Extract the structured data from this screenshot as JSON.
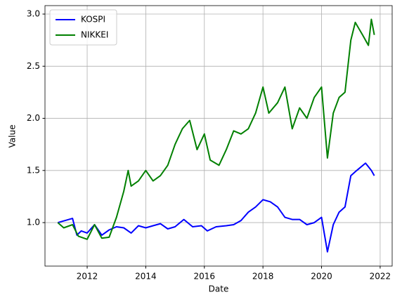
{
  "chart_data": {
    "type": "line",
    "xlabel": "Date",
    "ylabel": "Value",
    "xlim": [
      2010.56,
      2022.41
    ],
    "ylim": [
      0.583,
      3.081
    ],
    "xticks": [
      2012,
      2014,
      2016,
      2018,
      2020,
      2022
    ],
    "yticks": [
      {
        "value": 1.0,
        "label": "1.0"
      },
      {
        "value": 1.5,
        "label": "1.5"
      },
      {
        "value": 2.0,
        "label": "2.0"
      },
      {
        "value": 2.5,
        "label": "2.5"
      },
      {
        "value": 3.0,
        "label": "3.0"
      }
    ],
    "grid": true,
    "legend": "upper-left",
    "series": [
      {
        "name": "KOSPI",
        "color": "#0000ff",
        "x": [
          2011.0,
          2011.25,
          2011.5,
          2011.65,
          2011.8,
          2012.0,
          2012.25,
          2012.5,
          2012.75,
          2013.0,
          2013.25,
          2013.5,
          2013.75,
          2014.0,
          2014.25,
          2014.5,
          2014.75,
          2015.0,
          2015.3,
          2015.6,
          2015.9,
          2016.1,
          2016.4,
          2016.75,
          2017.0,
          2017.25,
          2017.5,
          2017.75,
          2018.0,
          2018.25,
          2018.5,
          2018.75,
          2019.0,
          2019.25,
          2019.5,
          2019.75,
          2020.0,
          2020.2,
          2020.4,
          2020.6,
          2020.8,
          2021.0,
          2021.2,
          2021.5,
          2021.7,
          2021.8
        ],
        "values": [
          1.0,
          1.02,
          1.04,
          0.88,
          0.92,
          0.9,
          0.98,
          0.88,
          0.93,
          0.96,
          0.95,
          0.9,
          0.97,
          0.95,
          0.97,
          0.99,
          0.94,
          0.96,
          1.03,
          0.96,
          0.97,
          0.92,
          0.96,
          0.97,
          0.98,
          1.02,
          1.1,
          1.15,
          1.22,
          1.2,
          1.15,
          1.05,
          1.03,
          1.03,
          0.98,
          1.0,
          1.05,
          0.72,
          0.98,
          1.1,
          1.15,
          1.45,
          1.5,
          1.57,
          1.5,
          1.45
        ]
      },
      {
        "name": "NIKKEI",
        "color": "#008000",
        "x": [
          2011.0,
          2011.2,
          2011.5,
          2011.7,
          2012.0,
          2012.25,
          2012.5,
          2012.75,
          2013.0,
          2013.25,
          2013.4,
          2013.5,
          2013.75,
          2014.0,
          2014.25,
          2014.5,
          2014.75,
          2015.0,
          2015.25,
          2015.5,
          2015.75,
          2016.0,
          2016.2,
          2016.5,
          2016.75,
          2017.0,
          2017.25,
          2017.5,
          2017.75,
          2018.0,
          2018.2,
          2018.5,
          2018.75,
          2019.0,
          2019.25,
          2019.5,
          2019.75,
          2020.0,
          2020.2,
          2020.4,
          2020.6,
          2020.8,
          2021.0,
          2021.15,
          2021.4,
          2021.6,
          2021.7,
          2021.8
        ],
        "values": [
          1.0,
          0.95,
          0.98,
          0.87,
          0.84,
          0.98,
          0.85,
          0.86,
          1.05,
          1.3,
          1.5,
          1.35,
          1.4,
          1.5,
          1.4,
          1.45,
          1.55,
          1.75,
          1.9,
          1.98,
          1.7,
          1.85,
          1.6,
          1.55,
          1.7,
          1.88,
          1.85,
          1.9,
          2.05,
          2.3,
          2.05,
          2.15,
          2.3,
          1.9,
          2.1,
          2.0,
          2.2,
          2.3,
          1.62,
          2.05,
          2.2,
          2.25,
          2.75,
          2.92,
          2.8,
          2.7,
          2.95,
          2.8
        ]
      }
    ]
  }
}
